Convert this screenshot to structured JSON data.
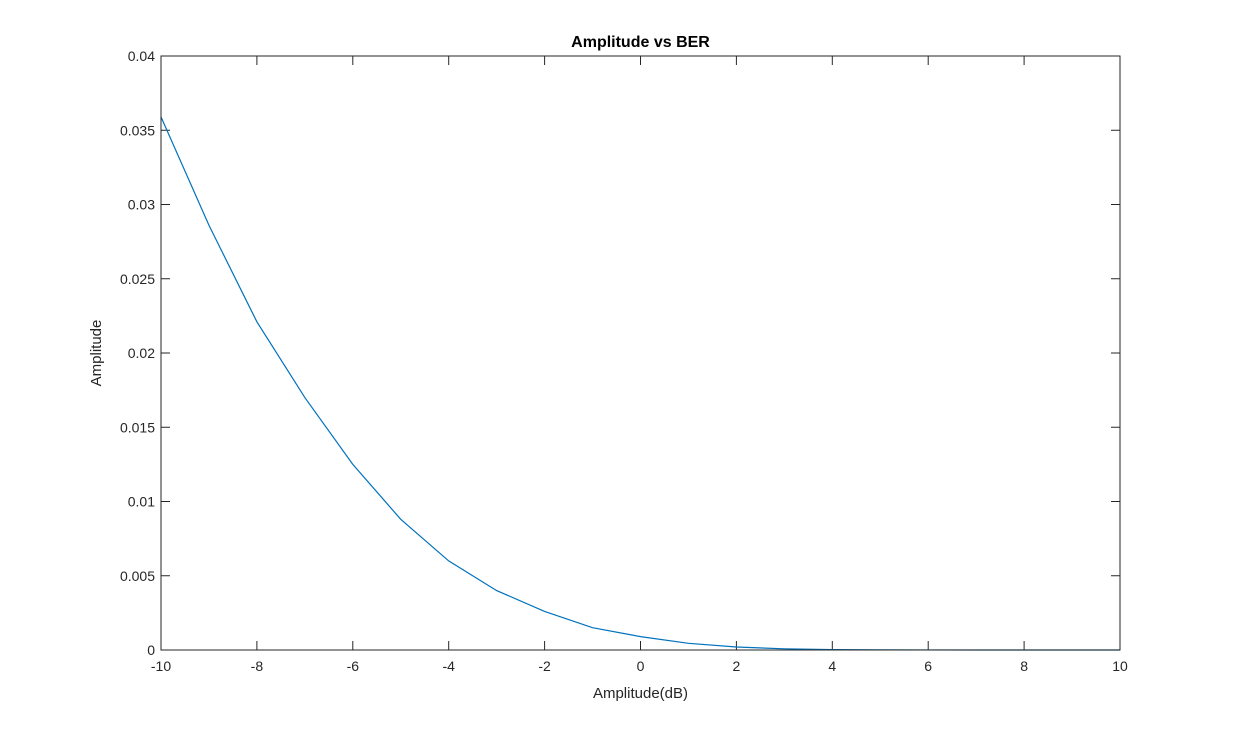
{
  "chart_data": {
    "type": "line",
    "title": "Amplitude vs BER",
    "xlabel": "Amplitude(dB)",
    "ylabel": "Amplitude",
    "xlim": [
      -10,
      10
    ],
    "ylim": [
      0,
      0.04
    ],
    "grid": false,
    "x_ticks": [
      "-10",
      "-8",
      "-6",
      "-4",
      "-2",
      "0",
      "2",
      "4",
      "6",
      "8",
      "10"
    ],
    "y_ticks": [
      "0",
      "0.005",
      "0.01",
      "0.015",
      "0.02",
      "0.025",
      "0.03",
      "0.035",
      "0.04"
    ],
    "series_color": "#0072BD",
    "x": [
      -10,
      -9,
      -8,
      -7,
      -6,
      -5,
      -4,
      -3,
      -2,
      -1,
      0,
      1,
      2,
      3,
      4,
      5,
      6,
      7,
      8,
      9,
      10
    ],
    "series": [
      {
        "values": [
          0.0359,
          0.0286,
          0.0221,
          0.017,
          0.0125,
          0.0088,
          0.006,
          0.004,
          0.0026,
          0.0015,
          0.0009,
          0.00045,
          0.0002,
          8e-05,
          3e-05,
          1e-05,
          4e-06,
          1e-06,
          3e-07,
          1e-07,
          0.0
        ]
      }
    ]
  }
}
